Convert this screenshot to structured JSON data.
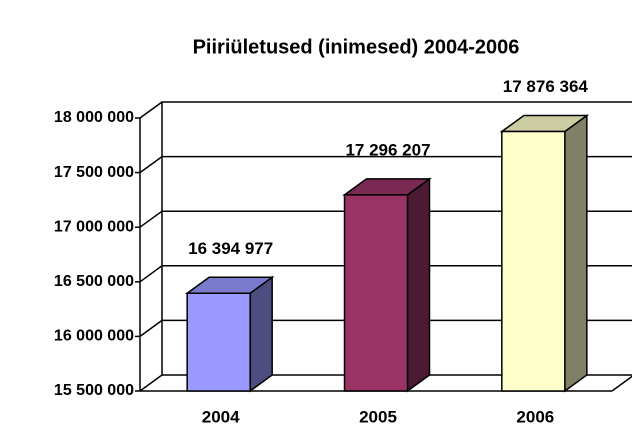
{
  "chart_data": {
    "type": "bar3d",
    "title": "Piiriületused (inimesed) 2004-2006",
    "categories": [
      "2004",
      "2005",
      "2006"
    ],
    "values": [
      16394977,
      17296207,
      17876364
    ],
    "value_labels": [
      "16 394 977",
      "17 296 207",
      "17 876 364"
    ],
    "colors": [
      "#9999ff",
      "#993366",
      "#ffffcc"
    ],
    "ylim": [
      15500000,
      18000000
    ],
    "yticks": [
      {
        "value": 15500000,
        "label": "15 500 000"
      },
      {
        "value": 16000000,
        "label": "16 000 000"
      },
      {
        "value": 16500000,
        "label": "16 500 000"
      },
      {
        "value": 17000000,
        "label": "17 000 000"
      },
      {
        "value": 17500000,
        "label": "17 500 000"
      },
      {
        "value": 18000000,
        "label": "18 000 000"
      }
    ],
    "grid": true
  }
}
